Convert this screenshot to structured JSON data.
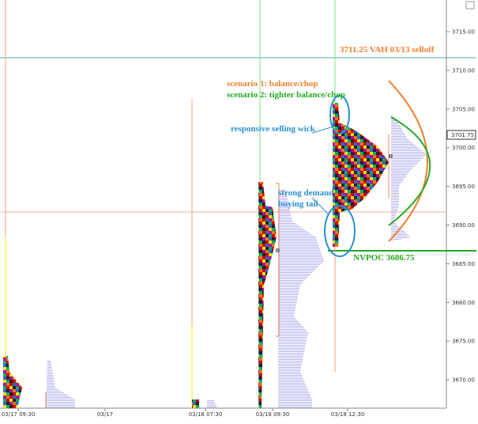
{
  "price_axis": {
    "labels": [
      "3715.00",
      "3710.00",
      "3705.00",
      "3700.00",
      "3695.00",
      "3690.00",
      "3685.00",
      "3680.00",
      "3675.00",
      "3670.00"
    ],
    "current_price": "3701.75"
  },
  "time_axis": {
    "labels": [
      "03/17 09:30",
      "03/17",
      "03/18 07:30",
      "03/18 09:30",
      "03/18 12:30"
    ]
  },
  "annotations": {
    "vah": "3711.25 VAH 03/13 selloff",
    "scenario_1": "scenario 1: balance/chop",
    "scenario_2": "scenario 2: tighter balance/chop",
    "wick": "responsive selling wick",
    "demand_1": "strong demand",
    "demand_2": "buying tail",
    "nvpoc": "NVPOC 3686.75"
  }
}
